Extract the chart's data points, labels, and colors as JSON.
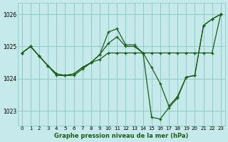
{
  "title": "Graphe pression niveau de la mer (hPa)",
  "bg_color": "#c6e9e9",
  "grid_color": "#88c4c4",
  "line_color": "#1a5c1a",
  "xlim": [
    -0.5,
    23.5
  ],
  "ylim": [
    1022.55,
    1026.35
  ],
  "xticks": [
    0,
    1,
    2,
    3,
    4,
    5,
    6,
    7,
    8,
    9,
    10,
    11,
    12,
    13,
    14,
    15,
    16,
    17,
    18,
    19,
    20,
    21,
    22,
    23
  ],
  "yticks": [
    1023,
    1024,
    1025,
    1026
  ],
  "series1_x": [
    0,
    1,
    2,
    3,
    4,
    5,
    6,
    7,
    8,
    9,
    10,
    11,
    12,
    13,
    14,
    15,
    16,
    17,
    18,
    19,
    20,
    21,
    22,
    23
  ],
  "series1_y": [
    1024.8,
    1025.0,
    1024.7,
    1024.4,
    1024.1,
    1024.1,
    1024.1,
    1024.3,
    1024.5,
    1024.6,
    1024.8,
    1024.8,
    1024.8,
    1024.8,
    1024.8,
    1024.8,
    1024.8,
    1024.8,
    1024.8,
    1024.8,
    1024.8,
    1024.8,
    1024.8,
    1026.0
  ],
  "series2_x": [
    0,
    1,
    2,
    3,
    4,
    5,
    6,
    7,
    8,
    9,
    10,
    11,
    12,
    13,
    14,
    15,
    16,
    17,
    18,
    19,
    20,
    21,
    22,
    23
  ],
  "series2_y": [
    1024.8,
    1025.0,
    1024.7,
    1024.4,
    1024.15,
    1024.1,
    1024.15,
    1024.35,
    1024.5,
    1024.75,
    1025.45,
    1025.55,
    1025.05,
    1025.05,
    1024.8,
    1024.35,
    1023.85,
    1023.15,
    1023.45,
    1024.05,
    1024.1,
    1025.65,
    1025.85,
    1026.0
  ],
  "series3_x": [
    0,
    1,
    2,
    3,
    4,
    5,
    6,
    7,
    8,
    9,
    10,
    11,
    12,
    13,
    14,
    15,
    16,
    17,
    18,
    19,
    20,
    21,
    22,
    23
  ],
  "series3_y": [
    1024.8,
    1025.0,
    1024.7,
    1024.4,
    1024.15,
    1024.1,
    1024.15,
    1024.35,
    1024.5,
    1024.75,
    1025.1,
    1025.3,
    1025.0,
    1025.0,
    1024.8,
    1022.8,
    1022.75,
    1023.1,
    1023.4,
    1024.05,
    1024.1,
    1025.65,
    1025.85,
    1026.0
  ]
}
